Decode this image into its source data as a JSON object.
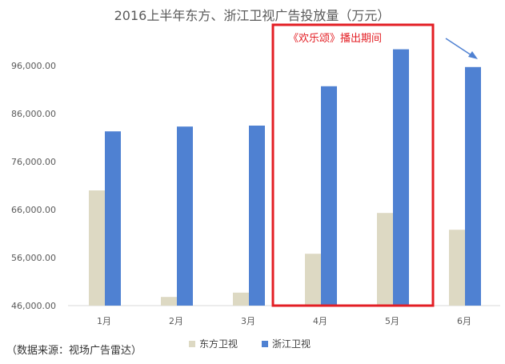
{
  "chart_data": {
    "type": "bar",
    "title": "2016上半年东方、浙江卫视广告投放量（万元）",
    "categories": [
      "1月",
      "2月",
      "3月",
      "4月",
      "5月",
      "6月"
    ],
    "series": [
      {
        "name": "东方卫视",
        "values": [
          70000,
          47800,
          48700,
          56800,
          65300,
          61800
        ],
        "color": "#DDD9C3"
      },
      {
        "name": "浙江卫视",
        "values": [
          82300,
          83300,
          83500,
          91700,
          99400,
          95700
        ],
        "color": "#4F81D2"
      }
    ],
    "yticks": [
      "46,000.00",
      "56,000.00",
      "66,000.00",
      "76,000.00",
      "86,000.00",
      "96,000.00"
    ],
    "ylim": [
      46000,
      102000
    ],
    "grid": false,
    "legend_position": "bottom",
    "annotation": {
      "text": "《欢乐颂》播出期间",
      "color": "#E31E24",
      "highlight_categories": [
        "4月",
        "5月"
      ]
    },
    "source": "（数据来源：视场广告雷达）"
  }
}
